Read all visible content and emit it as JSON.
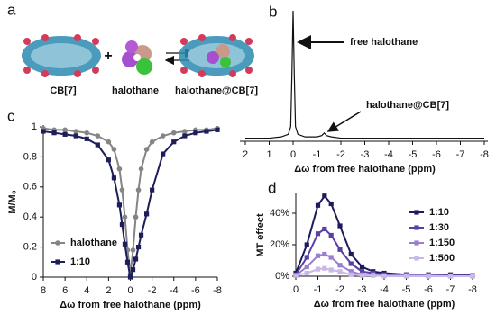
{
  "panel_a": {
    "label": "a",
    "plus": "+",
    "captions": [
      "CB[7]",
      "halothane",
      "halothane@CB[7]"
    ]
  },
  "chart_data": [
    {
      "type": "line",
      "panel": "b",
      "x_label": "Δω from free halothane (ppm)",
      "color": "#111111",
      "annotations": [
        "free halothane",
        "halothane@CB[7]"
      ],
      "x": [
        2,
        1,
        0.5,
        0.2,
        0.1,
        0.05,
        0,
        -0.05,
        -0.1,
        -0.2,
        -0.5,
        -1,
        -1.2,
        -1.3,
        -1.4,
        -1.6,
        -2,
        -4,
        -6,
        -8
      ],
      "values": [
        0.01,
        0.01,
        0.02,
        0.04,
        0.1,
        0.5,
        1,
        0.5,
        0.1,
        0.04,
        0.02,
        0.02,
        0.03,
        0.05,
        0.03,
        0.02,
        0.01,
        0.01,
        0.01,
        0.01
      ],
      "xlim": [
        2,
        -8
      ],
      "xticks": [
        2,
        1,
        0,
        -1,
        -2,
        -3,
        -4,
        -5,
        -6,
        -7,
        -8
      ],
      "ylim": [
        0,
        1
      ]
    },
    {
      "type": "line",
      "panel": "c",
      "x_label": "Δω from free halothane (ppm)",
      "y_label": "M/M₀",
      "legend": "lower left",
      "x": [
        8,
        7,
        6,
        5,
        4,
        3,
        2,
        1.5,
        1,
        0.75,
        0.5,
        0.25,
        0,
        -0.25,
        -0.5,
        -0.75,
        -1,
        -1.5,
        -2,
        -3,
        -4,
        -5,
        -6,
        -7,
        -8
      ],
      "series": [
        {
          "name": "halothane",
          "color": "#858585",
          "marker": "circle",
          "values": [
            0.99,
            0.98,
            0.98,
            0.97,
            0.96,
            0.94,
            0.9,
            0.85,
            0.72,
            0.58,
            0.4,
            0.18,
            0.02,
            0.18,
            0.4,
            0.58,
            0.72,
            0.85,
            0.9,
            0.94,
            0.96,
            0.97,
            0.98,
            0.98,
            0.99
          ]
        },
        {
          "name": "1:10",
          "color": "#1e1e5a",
          "marker": "square",
          "values": [
            0.97,
            0.96,
            0.95,
            0.94,
            0.92,
            0.88,
            0.78,
            0.66,
            0.48,
            0.35,
            0.22,
            0.1,
            0.0,
            0.05,
            0.12,
            0.2,
            0.28,
            0.42,
            0.58,
            0.82,
            0.9,
            0.94,
            0.96,
            0.97,
            0.98
          ]
        }
      ],
      "xlim": [
        8,
        -8
      ],
      "xticks": [
        8,
        6,
        4,
        2,
        0,
        -2,
        -4,
        -6,
        -8
      ],
      "ylim": [
        0,
        1
      ],
      "yticks": [
        0,
        0.2,
        0.4,
        0.6,
        0.8,
        1
      ]
    },
    {
      "type": "line",
      "panel": "d",
      "x_label": "Δω from free halothane (ppm)",
      "y_label": "MT effect",
      "legend": "right",
      "x": [
        0,
        -0.5,
        -1,
        -1.3,
        -1.6,
        -2,
        -2.5,
        -3,
        -3.5,
        -4,
        -5,
        -6,
        -7,
        -8
      ],
      "series": [
        {
          "name": "1:10",
          "color": "#1c1c5c",
          "marker": "square",
          "values": [
            2,
            20,
            45,
            51,
            46,
            32,
            14,
            6,
            3,
            2,
            1,
            1,
            1,
            0.5
          ]
        },
        {
          "name": "1:30",
          "color": "#5b3fa3",
          "marker": "square",
          "values": [
            1,
            12,
            27,
            30,
            26,
            17,
            8,
            3,
            2,
            1,
            1,
            0.5,
            0.5,
            0.5
          ]
        },
        {
          "name": "1:150",
          "color": "#9a7fd0",
          "marker": "square",
          "values": [
            0.5,
            6,
            13,
            14,
            12,
            7,
            3,
            1,
            1,
            0.5,
            0.5,
            0.5,
            0,
            0
          ]
        },
        {
          "name": "1:500",
          "color": "#c9b8e8",
          "marker": "square",
          "values": [
            0.5,
            2,
            4.5,
            5,
            4,
            3,
            1,
            0.5,
            0.5,
            0,
            0,
            0,
            0,
            0
          ]
        }
      ],
      "xlim": [
        0,
        -8
      ],
      "xticks": [
        0,
        -1,
        -2,
        -3,
        -4,
        -5,
        -6,
        -7,
        -8
      ],
      "ylim": [
        0,
        52
      ],
      "yticks": [
        {
          "value": 0,
          "label": "0%"
        },
        {
          "value": 20,
          "label": "20%"
        },
        {
          "value": 40,
          "label": "40%"
        }
      ]
    }
  ]
}
